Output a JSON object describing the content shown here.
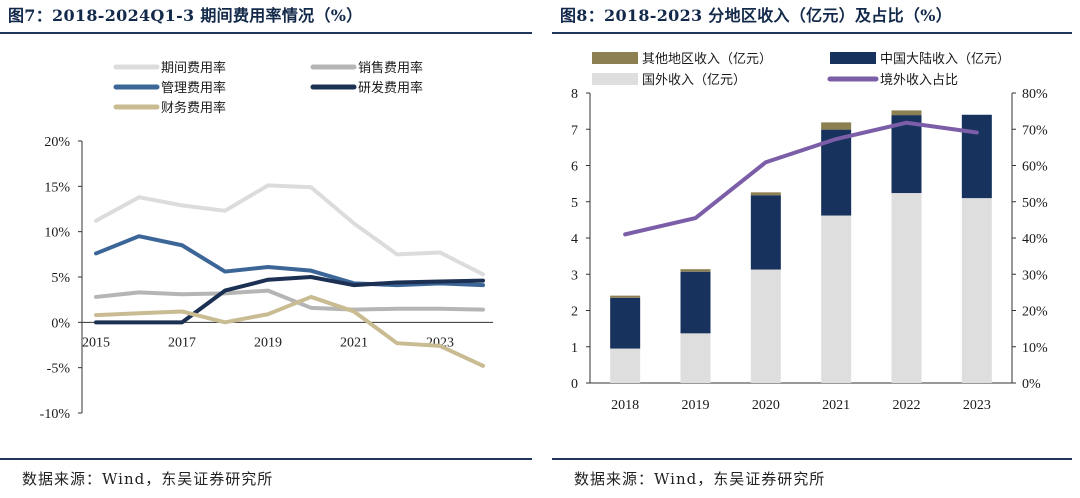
{
  "left": {
    "title": "图7：2018-2024Q1-3 期间费用率情况（%）",
    "source": "数据来源：Wind，东吴证券研究所"
  },
  "right": {
    "title": "图8：2018-2023 分地区收入（亿元）及占比（%）",
    "source": "数据来源：Wind，东吴证券研究所"
  },
  "chart_data": [
    {
      "type": "line",
      "title": "图7：2018-2024Q1-3 期间费用率情况（%）",
      "x": [
        2015,
        2016,
        2017,
        2018,
        2019,
        2020,
        2021,
        2022,
        2023,
        2024
      ],
      "x_tick_labels": [
        "2015",
        "2017",
        "2019",
        "2021",
        "2023"
      ],
      "ylim": [
        -10,
        20
      ],
      "y_tick_labels": [
        "20%",
        "15%",
        "10%",
        "5%",
        "0%",
        "-5%",
        "-10%"
      ],
      "legend_position": "top",
      "grid": false,
      "series": [
        {
          "name": "期间费用率",
          "color": "#dcdcdc",
          "values": [
            11.2,
            13.8,
            12.9,
            12.3,
            15.1,
            14.9,
            10.9,
            7.5,
            7.7,
            5.3
          ]
        },
        {
          "name": "销售费用率",
          "color": "#b5b5b5",
          "values": [
            2.8,
            3.3,
            3.1,
            3.2,
            3.5,
            1.6,
            1.4,
            1.5,
            1.5,
            1.4
          ]
        },
        {
          "name": "管理费用率",
          "color": "#3d6698",
          "values": [
            7.6,
            9.5,
            8.5,
            5.6,
            6.1,
            5.7,
            4.3,
            4.1,
            4.3,
            4.1
          ]
        },
        {
          "name": "研发费用率",
          "color": "#1b3052",
          "values": [
            0.0,
            0.0,
            0.0,
            3.5,
            4.7,
            5.0,
            4.1,
            4.4,
            4.5,
            4.6
          ]
        },
        {
          "name": "财务费用率",
          "color": "#c9bb92",
          "values": [
            0.8,
            1.0,
            1.2,
            0.0,
            0.9,
            2.8,
            1.2,
            -2.3,
            -2.6,
            -4.8
          ]
        }
      ]
    },
    {
      "type": "bar",
      "title": "图8：2018-2023 分地区收入（亿元）及占比（%）",
      "categories": [
        "2018",
        "2019",
        "2020",
        "2021",
        "2022",
        "2023"
      ],
      "ylim": [
        0,
        8
      ],
      "y_tick_labels": [
        "0",
        "1",
        "2",
        "3",
        "4",
        "5",
        "6",
        "7",
        "8"
      ],
      "y2lim": [
        0,
        80
      ],
      "y2_tick_labels": [
        "0%",
        "10%",
        "20%",
        "30%",
        "40%",
        "50%",
        "60%",
        "70%",
        "80%"
      ],
      "legend_position": "top",
      "grid": false,
      "stacked": true,
      "series": [
        {
          "name": "国外收入（亿元）",
          "kind": "bar",
          "color": "#dedede",
          "values": [
            0.95,
            1.37,
            3.13,
            4.62,
            5.24,
            5.1
          ]
        },
        {
          "name": "中国大陆收入（亿元）",
          "kind": "bar",
          "color": "#17325c",
          "values": [
            1.4,
            1.7,
            2.05,
            2.37,
            2.15,
            2.3
          ]
        },
        {
          "name": "其他地区收入（亿元）",
          "kind": "bar",
          "color": "#8c8053",
          "values": [
            0.06,
            0.07,
            0.08,
            0.2,
            0.13,
            0.0
          ]
        },
        {
          "name": "境外收入占比",
          "kind": "line",
          "axis": "right",
          "color": "#7b5da8",
          "values": [
            41.0,
            45.5,
            60.9,
            67.3,
            71.8,
            69.1
          ]
        }
      ]
    }
  ]
}
